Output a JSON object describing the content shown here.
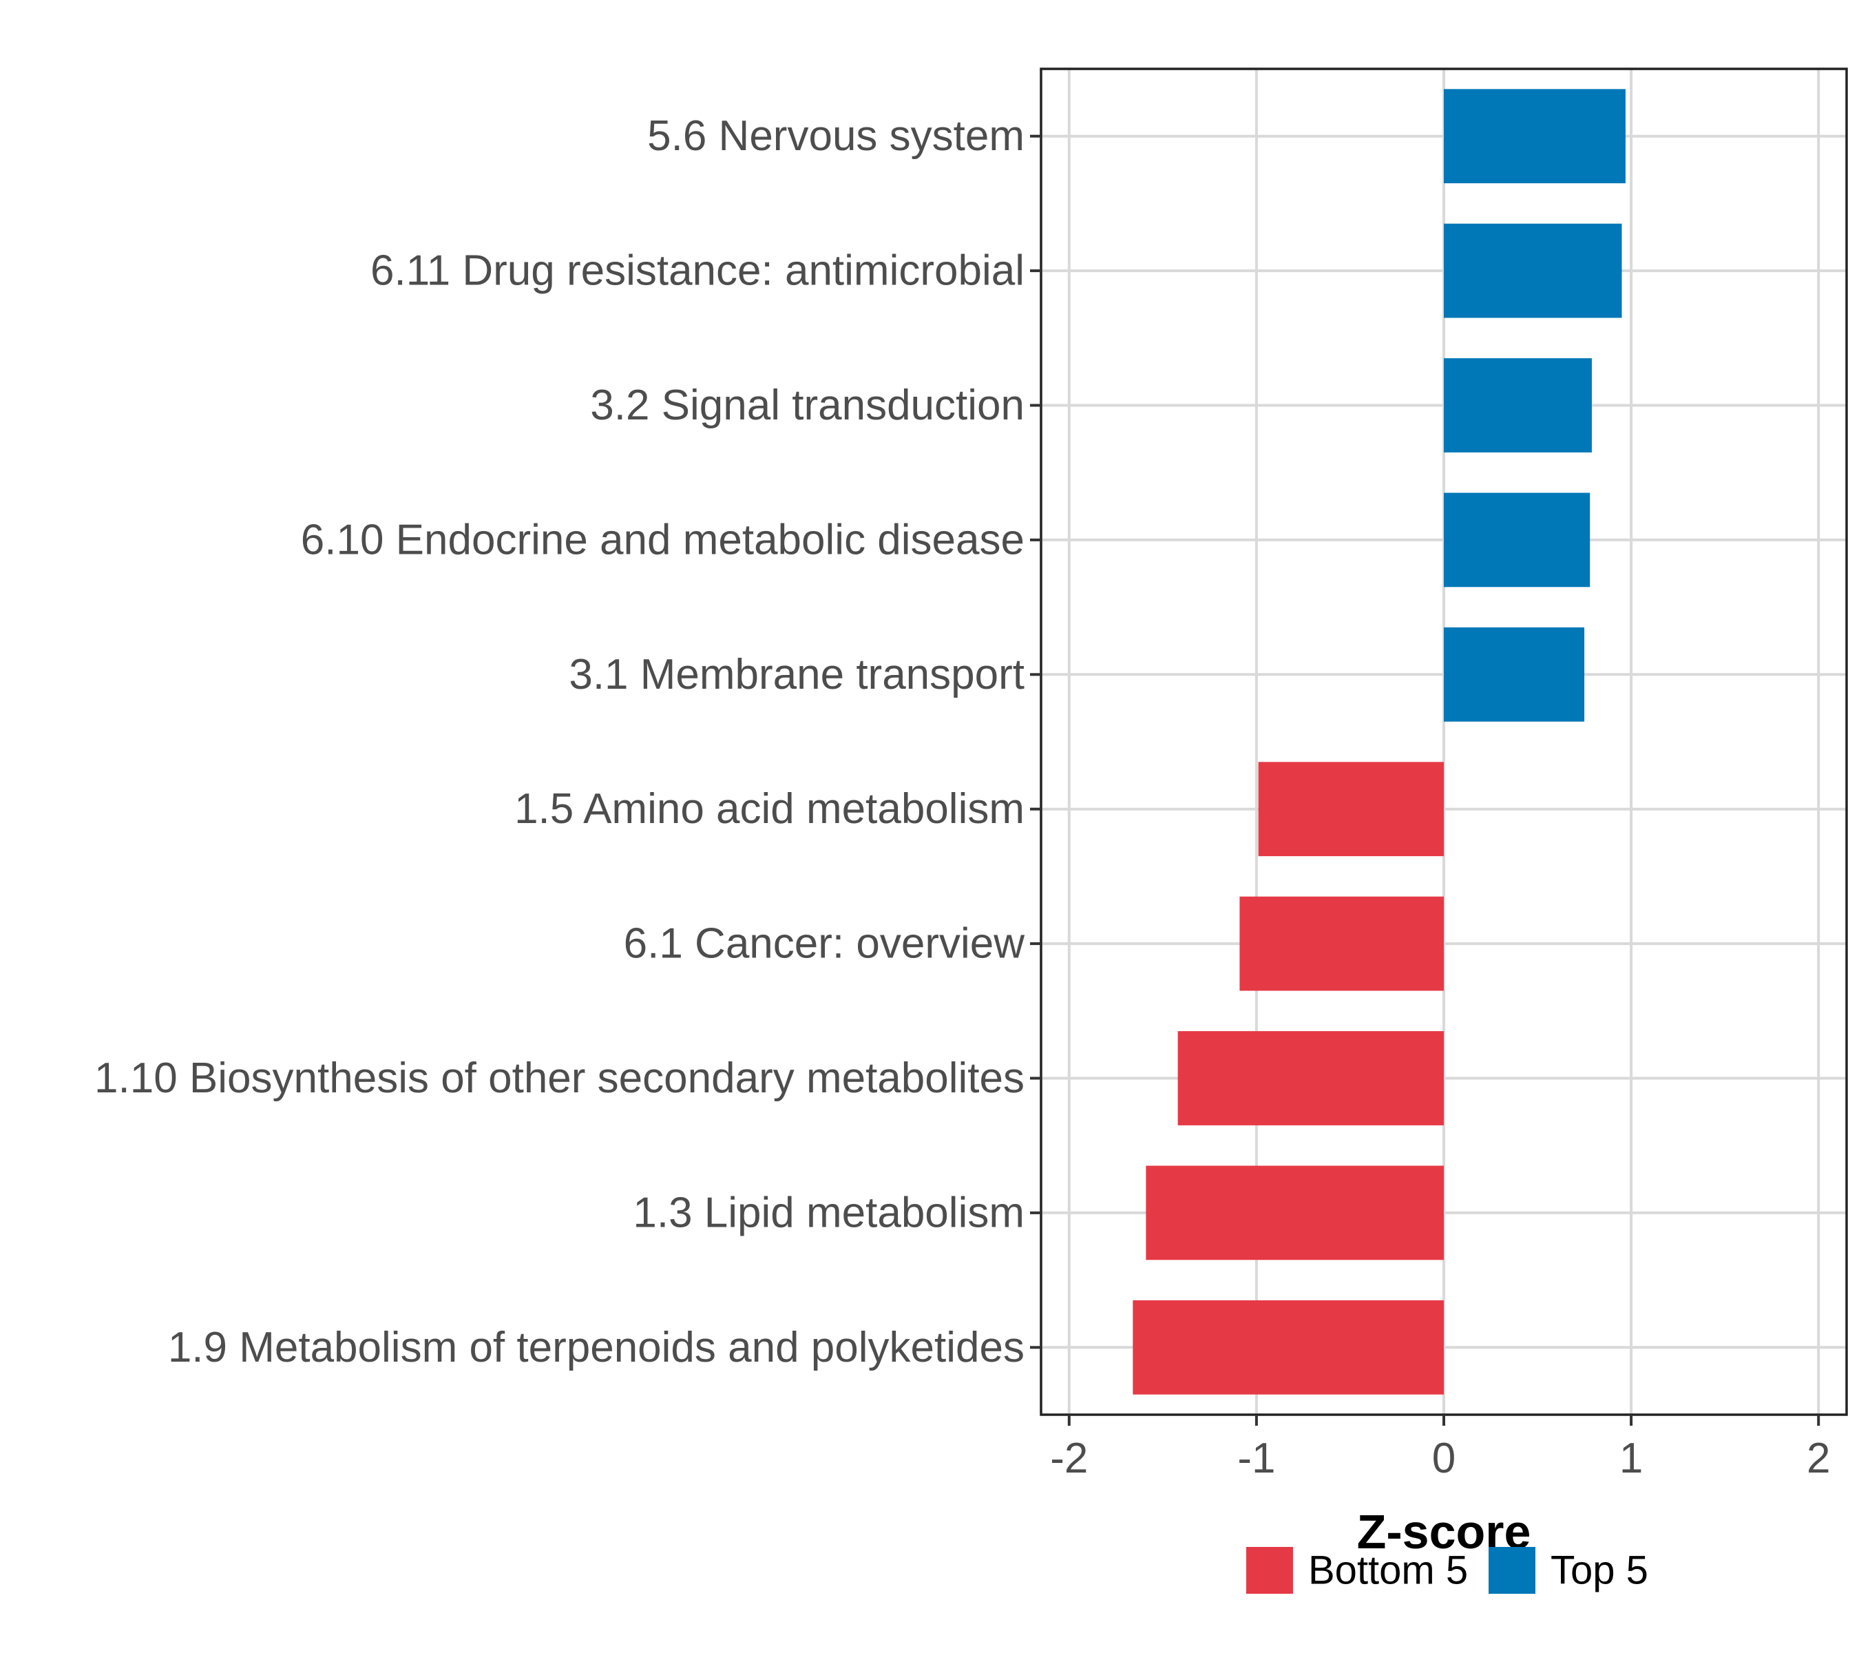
{
  "chart_data": {
    "type": "bar",
    "orientation": "horizontal",
    "categories": [
      "5.6 Nervous system",
      "6.11 Drug resistance: antimicrobial",
      "3.2 Signal transduction",
      "6.10 Endocrine and metabolic disease",
      "3.1 Membrane transport",
      "1.5 Amino acid metabolism",
      "6.1 Cancer: overview",
      "1.10 Biosynthesis of other secondary metabolites",
      "1.3 Lipid metabolism",
      "1.9 Metabolism of terpenoids and polyketides"
    ],
    "values": [
      0.97,
      0.95,
      0.79,
      0.78,
      0.75,
      -0.99,
      -1.09,
      -1.42,
      -1.59,
      -1.66
    ],
    "groups": [
      "Top 5",
      "Top 5",
      "Top 5",
      "Top 5",
      "Top 5",
      "Bottom 5",
      "Bottom 5",
      "Bottom 5",
      "Bottom 5",
      "Bottom 5"
    ],
    "xlim": [
      -2.15,
      2.15
    ],
    "xticks": [
      -2,
      -1,
      0,
      1,
      2
    ],
    "xtick_labels": [
      "-2",
      "-1",
      "0",
      "1",
      "2"
    ],
    "xlabel": "Z-score",
    "ylabel": "",
    "title": "",
    "grid": true,
    "legend": {
      "position": "bottom",
      "entries": [
        {
          "name": "Bottom 5",
          "color": "#E63946"
        },
        {
          "name": "Top 5",
          "color": "#0077B6"
        }
      ]
    }
  }
}
